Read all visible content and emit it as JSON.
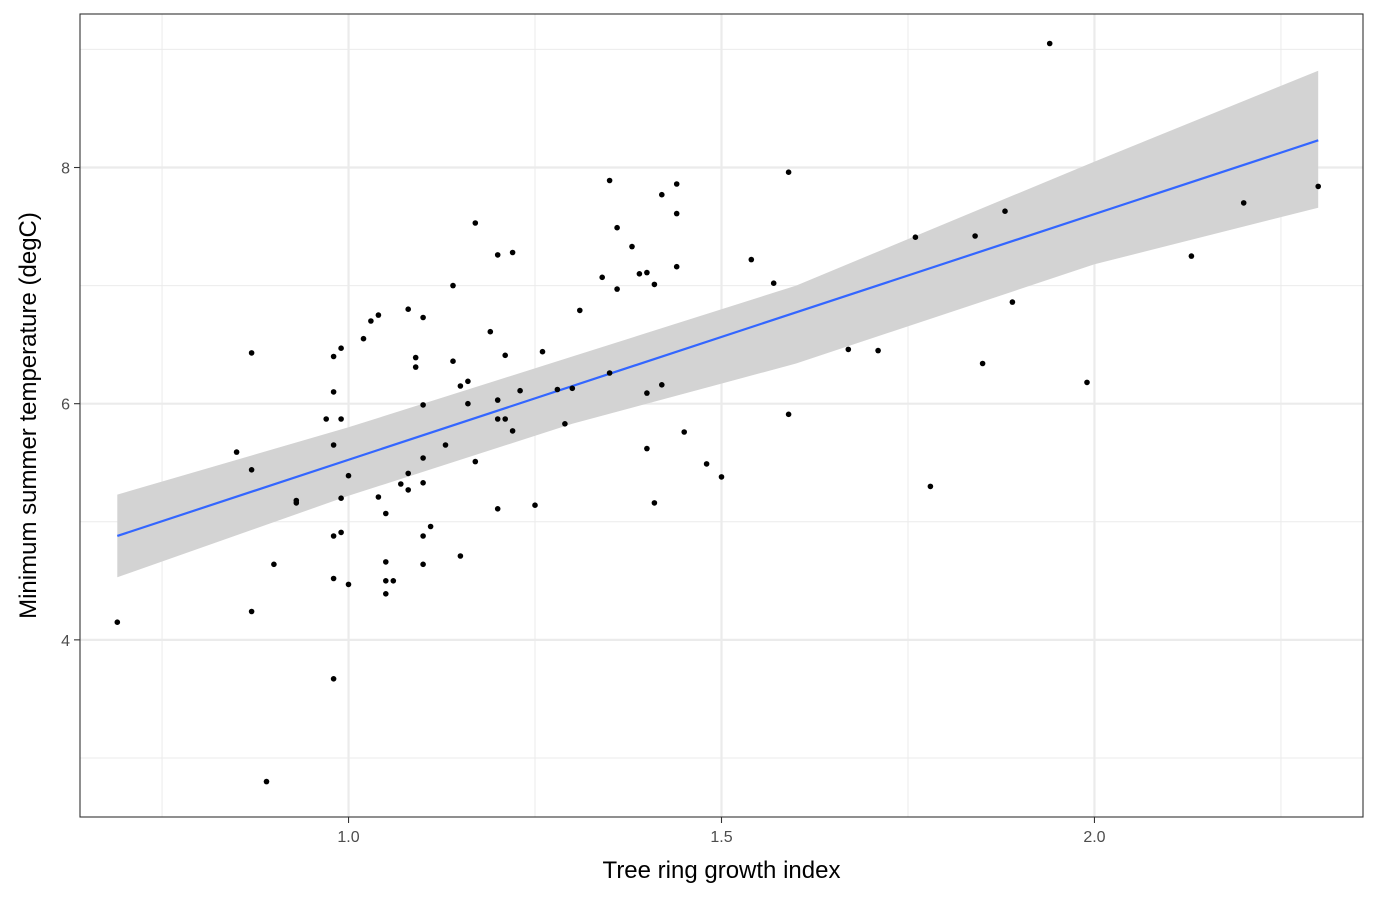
{
  "chart_data": {
    "type": "scatter",
    "title": "",
    "xlabel": "Tree ring growth index",
    "ylabel": "Minimum summer temperature (degC)",
    "xlim": [
      0.64,
      2.36
    ],
    "ylim": [
      2.5,
      9.3
    ],
    "x_ticks": [
      1.0,
      1.5,
      2.0
    ],
    "x_tick_labels": [
      "1.0",
      "1.5",
      "2.0"
    ],
    "y_ticks": [
      4,
      6,
      8
    ],
    "y_tick_labels": [
      "4",
      "6",
      "8"
    ],
    "x_minor_ticks": [
      0.75,
      1.25,
      1.75,
      2.25
    ],
    "y_minor_ticks": [
      3,
      5,
      7,
      9
    ],
    "grid": true,
    "legend": "none",
    "colors": {
      "points": "#000000",
      "fit_line": "#3366ff",
      "confidence_band": "#d3d3d3",
      "grid": "#ebebeb",
      "panel_border": "#333333"
    },
    "series": [
      {
        "kind": "points",
        "x": [
          0.69,
          0.85,
          0.87,
          0.87,
          0.87,
          0.89,
          0.9,
          0.93,
          0.93,
          0.97,
          0.98,
          0.98,
          0.98,
          0.98,
          0.98,
          0.98,
          0.99,
          0.99,
          0.99,
          0.99,
          1.0,
          1.0,
          1.02,
          1.03,
          1.04,
          1.04,
          1.05,
          1.05,
          1.05,
          1.05,
          1.06,
          1.07,
          1.08,
          1.08,
          1.08,
          1.09,
          1.09,
          1.1,
          1.1,
          1.1,
          1.1,
          1.1,
          1.1,
          1.11,
          1.13,
          1.14,
          1.14,
          1.15,
          1.15,
          1.16,
          1.16,
          1.17,
          1.17,
          1.19,
          1.2,
          1.2,
          1.2,
          1.2,
          1.21,
          1.21,
          1.22,
          1.22,
          1.23,
          1.25,
          1.26,
          1.28,
          1.29,
          1.3,
          1.31,
          1.34,
          1.35,
          1.35,
          1.36,
          1.36,
          1.38,
          1.39,
          1.4,
          1.4,
          1.4,
          1.41,
          1.41,
          1.42,
          1.42,
          1.44,
          1.44,
          1.44,
          1.45,
          1.48,
          1.5,
          1.54,
          1.57,
          1.59,
          1.59,
          1.67,
          1.71,
          1.76,
          1.78,
          1.84,
          1.85,
          1.88,
          1.89,
          1.94,
          1.99,
          2.13,
          2.2,
          2.3
        ],
        "y": [
          4.15,
          5.59,
          6.43,
          5.44,
          4.24,
          2.8,
          4.64,
          5.18,
          5.16,
          5.87,
          6.4,
          6.1,
          5.65,
          4.88,
          4.52,
          3.67,
          6.47,
          5.87,
          5.2,
          4.91,
          5.39,
          4.47,
          6.55,
          6.7,
          6.75,
          5.21,
          5.07,
          4.66,
          4.5,
          4.39,
          4.5,
          5.32,
          6.8,
          5.41,
          5.27,
          6.39,
          6.31,
          6.73,
          5.99,
          5.54,
          5.33,
          4.88,
          4.64,
          4.96,
          5.65,
          7.0,
          6.36,
          6.15,
          4.71,
          6.19,
          6.0,
          7.53,
          5.51,
          6.61,
          7.26,
          6.03,
          5.87,
          5.11,
          6.41,
          5.87,
          7.28,
          5.77,
          6.11,
          5.14,
          6.44,
          6.12,
          5.83,
          6.13,
          6.79,
          7.07,
          7.89,
          6.26,
          7.49,
          6.97,
          7.33,
          7.1,
          7.11,
          6.09,
          5.62,
          7.01,
          5.16,
          7.77,
          6.16,
          7.86,
          7.61,
          7.16,
          5.76,
          5.49,
          5.38,
          7.22,
          7.02,
          7.96,
          5.91,
          6.46,
          6.45,
          7.41,
          5.3,
          7.42,
          6.34,
          7.63,
          6.86,
          9.05,
          6.18,
          7.25,
          7.7,
          7.84
        ]
      },
      {
        "kind": "linear_fit",
        "x": [
          0.69,
          2.3
        ],
        "y": [
          4.88,
          8.23
        ]
      },
      {
        "kind": "confidence_band",
        "x": [
          0.69,
          1.0,
          1.3,
          1.6,
          2.0,
          2.3
        ],
        "lower": [
          4.53,
          5.22,
          5.83,
          6.34,
          7.18,
          7.66
        ],
        "upper": [
          5.23,
          5.8,
          6.4,
          7.0,
          8.05,
          8.82
        ]
      }
    ]
  }
}
